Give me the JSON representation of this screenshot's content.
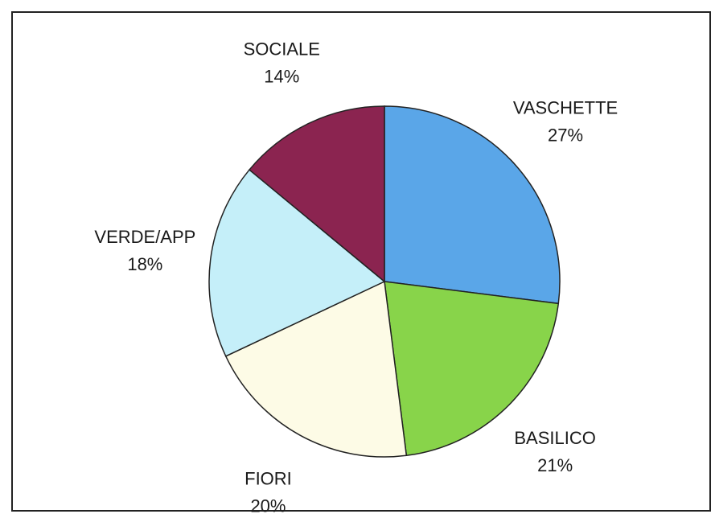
{
  "chart_data": {
    "type": "pie",
    "categories": [
      "VASCHETTE",
      "BASILICO",
      "FIORI",
      "VERDE/APP",
      "SOCIALE"
    ],
    "values": [
      27,
      21,
      20,
      18,
      14
    ],
    "value_labels": [
      "27%",
      "21%",
      "20%",
      "18%",
      "14%"
    ],
    "colors": [
      "#5aa6e8",
      "#88d44a",
      "#fdfbe6",
      "#c5eff9",
      "#8b2450"
    ]
  }
}
